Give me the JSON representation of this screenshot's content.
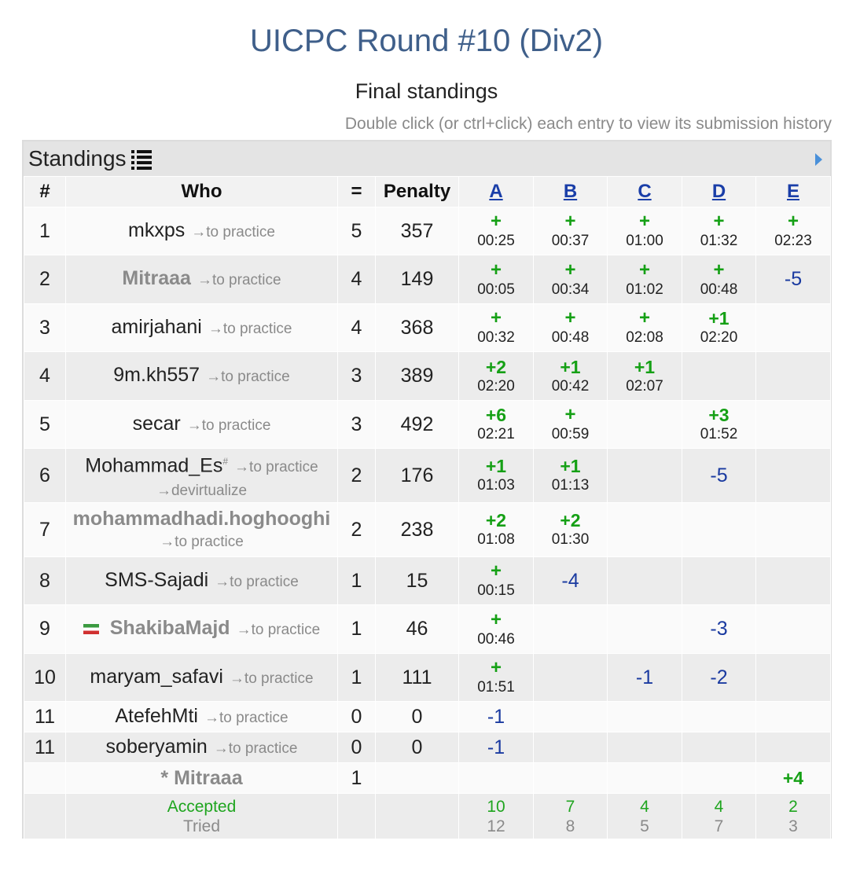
{
  "header": {
    "title": "UICPC Round #10 (Div2)",
    "subtitle": "Final standings",
    "hint": "Double click (or ctrl+click) each entry to view its submission history"
  },
  "panel": {
    "label": "Standings"
  },
  "columns": {
    "rank": "#",
    "who": "Who",
    "solved": "=",
    "penalty": "Penalty",
    "problems": [
      "A",
      "B",
      "C",
      "D",
      "E"
    ]
  },
  "rows": [
    {
      "rank": "1",
      "name": "mkxps",
      "practice": "→to practice",
      "solved": "5",
      "penalty": "357",
      "cells": [
        {
          "r": "+",
          "t": "00:25"
        },
        {
          "r": "+",
          "t": "00:37"
        },
        {
          "r": "+",
          "t": "01:00"
        },
        {
          "r": "+",
          "t": "01:32"
        },
        {
          "r": "+",
          "t": "02:23"
        }
      ]
    },
    {
      "rank": "2",
      "name": "Mitraaa",
      "practice": "→to practice",
      "solved": "4",
      "penalty": "149",
      "cells": [
        {
          "r": "+",
          "t": "00:05"
        },
        {
          "r": "+",
          "t": "00:34"
        },
        {
          "r": "+",
          "t": "01:02"
        },
        {
          "r": "+",
          "t": "00:48"
        },
        {
          "n": "-5"
        }
      ]
    },
    {
      "rank": "3",
      "name": "amirjahani",
      "practice": "→to practice",
      "solved": "4",
      "penalty": "368",
      "cells": [
        {
          "r": "+",
          "t": "00:32"
        },
        {
          "r": "+",
          "t": "00:48"
        },
        {
          "r": "+",
          "t": "02:08"
        },
        {
          "r": "+1",
          "t": "02:20"
        },
        {}
      ]
    },
    {
      "rank": "4",
      "name": "9m.kh557",
      "practice": "→to practice",
      "solved": "3",
      "penalty": "389",
      "cells": [
        {
          "r": "+2",
          "t": "02:20"
        },
        {
          "r": "+1",
          "t": "00:42"
        },
        {
          "r": "+1",
          "t": "02:07"
        },
        {},
        {}
      ]
    },
    {
      "rank": "5",
      "name": "secar",
      "practice": "→to practice",
      "solved": "3",
      "penalty": "492",
      "cells": [
        {
          "r": "+6",
          "t": "02:21"
        },
        {
          "r": "+",
          "t": "00:59"
        },
        {},
        {
          "r": "+3",
          "t": "01:52"
        },
        {}
      ]
    },
    {
      "rank": "6",
      "name": "Mohammad_Es",
      "sup": "#",
      "practice": "→to practice",
      "extra": "→devirtualize",
      "solved": "2",
      "penalty": "176",
      "cells": [
        {
          "r": "+1",
          "t": "01:03"
        },
        {
          "r": "+1",
          "t": "01:13"
        },
        {},
        {
          "n": "-5"
        },
        {}
      ]
    },
    {
      "rank": "7",
      "name": "mohammadhadi.hoghooghi",
      "practice": "→to practice",
      "solved": "2",
      "penalty": "238",
      "cells": [
        {
          "r": "+2",
          "t": "01:08"
        },
        {
          "r": "+2",
          "t": "01:30"
        },
        {},
        {},
        {}
      ]
    },
    {
      "rank": "8",
      "name": "SMS-Sajadi",
      "practice": "→to practice",
      "solved": "1",
      "penalty": "15",
      "cells": [
        {
          "r": "+",
          "t": "00:15"
        },
        {
          "n": "-4"
        },
        {},
        {},
        {}
      ]
    },
    {
      "rank": "9",
      "name": "ShakibaMajd",
      "practice": "→to practice",
      "solved": "1",
      "penalty": "46",
      "cells": [
        {
          "r": "+",
          "t": "00:46"
        },
        {},
        {},
        {
          "n": "-3"
        },
        {}
      ]
    },
    {
      "rank": "10",
      "name": "maryam_safavi",
      "practice": "→to practice",
      "solved": "1",
      "penalty": "111",
      "cells": [
        {
          "r": "+",
          "t": "01:51"
        },
        {},
        {
          "n": "-1"
        },
        {
          "n": "-2"
        },
        {}
      ]
    },
    {
      "rank": "11",
      "name": "AtefehMti",
      "practice": "→to practice",
      "solved": "0",
      "penalty": "0",
      "cells": [
        {
          "n": "-1"
        },
        {},
        {},
        {},
        {}
      ]
    },
    {
      "rank": "11",
      "name": "soberyamin",
      "practice": "→to practice",
      "solved": "0",
      "penalty": "0",
      "cells": [
        {
          "n": "-1"
        },
        {},
        {},
        {},
        {}
      ]
    }
  ],
  "virtual_row": {
    "name": "* Mitraaa",
    "solved": "1",
    "e_result": "+4"
  },
  "summary": {
    "accepted_label": "Accepted",
    "tried_label": "Tried",
    "accepted": [
      "10",
      "7",
      "4",
      "4",
      "2"
    ],
    "tried": [
      "12",
      "8",
      "5",
      "7",
      "3"
    ]
  },
  "colors": {
    "title": "#3f5f8a",
    "accepted": "#15a015",
    "rejected": "#1a3aa0",
    "link": "#1a3ea8"
  }
}
